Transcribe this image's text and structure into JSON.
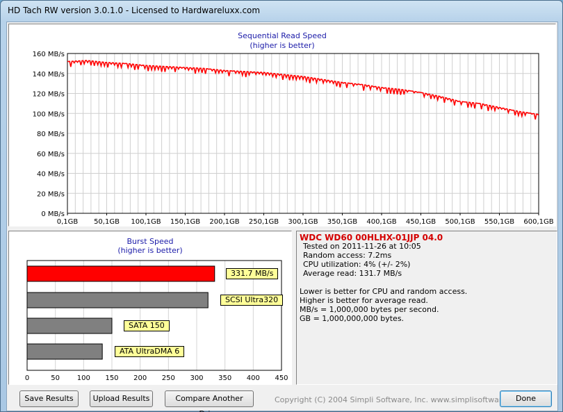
{
  "window": {
    "title": "HD Tach RW version 3.0.1.0 - Licensed to Hardwareluxx.com"
  },
  "sequential": {
    "title": "Sequential Read Speed",
    "subtitle": "(higher is better)",
    "y_ticks": [
      "160 MB/s",
      "140 MB/s",
      "120 MB/s",
      "100 MB/s",
      "80 MB/s",
      "60 MB/s",
      "40 MB/s",
      "20 MB/s",
      "0 MB/s"
    ],
    "x_ticks": [
      "0,1GB",
      "50,1GB",
      "100,1GB",
      "150,1GB",
      "200,1GB",
      "250,1GB",
      "300,1GB",
      "350,1GB",
      "400,1GB",
      "450,1GB",
      "500,1GB",
      "550,1GB",
      "600,1GB"
    ],
    "line_color": "#ff0000"
  },
  "burst": {
    "title": "Burst Speed",
    "subtitle": "(higher is better)",
    "x_ticks": [
      "0",
      "50",
      "100",
      "150",
      "200",
      "250",
      "300",
      "350",
      "400",
      "450"
    ]
  },
  "info": {
    "drive": "WDC WD60 00HLHX-01JJP 04.0",
    "tested": "Tested on 2011-11-26 at 10:05",
    "random": "Random access: 7.2ms",
    "cpu": "CPU utilization: 4% (+/- 2%)",
    "avg": "Average read: 131.7 MB/s",
    "note1": "Lower is better for CPU and random access.",
    "note2": "Higher is better for average read.",
    "note3": "MB/s = 1,000,000 bytes per second.",
    "note4": "GB = 1,000,000,000 bytes."
  },
  "buttons": {
    "save": "Save Results",
    "upload": "Upload Results",
    "compare": "Compare Another Drive",
    "done": "Done"
  },
  "copyright": "Copyright (C) 2004 Simpli Software, Inc. www.simplisoftware.com",
  "chart_data": [
    {
      "type": "line",
      "title": "Sequential Read Speed",
      "subtitle": "(higher is better)",
      "xlabel": "",
      "ylabel": "",
      "x": [
        0.1,
        25,
        50.1,
        75,
        100.1,
        125,
        150.1,
        175,
        200.1,
        225,
        250.1,
        275,
        300.1,
        325,
        350.1,
        375,
        400.1,
        425,
        450.1,
        475,
        500.1,
        525,
        550.1,
        575,
        600.1
      ],
      "series": [
        {
          "values": [
            152,
            153,
            151,
            150,
            148,
            147,
            146,
            145,
            143,
            142,
            141,
            139,
            137,
            134,
            131,
            129,
            126,
            124,
            121,
            117,
            112,
            110,
            106,
            102,
            99
          ]
        }
      ],
      "xlim": [
        0.1,
        600.1
      ],
      "ylim": [
        0,
        160
      ],
      "grid": true
    },
    {
      "type": "bar",
      "orientation": "horizontal",
      "title": "Burst Speed",
      "subtitle": "(higher is better)",
      "categories": [
        "331.7 MB/s",
        "SCSI Ultra320",
        "SATA 150",
        "ATA UltraDMA 6"
      ],
      "values": [
        331.7,
        320,
        150,
        133
      ],
      "colors": [
        "#ff0000",
        "#808080",
        "#808080",
        "#808080"
      ],
      "xlim": [
        0,
        450
      ],
      "grid": true
    }
  ]
}
